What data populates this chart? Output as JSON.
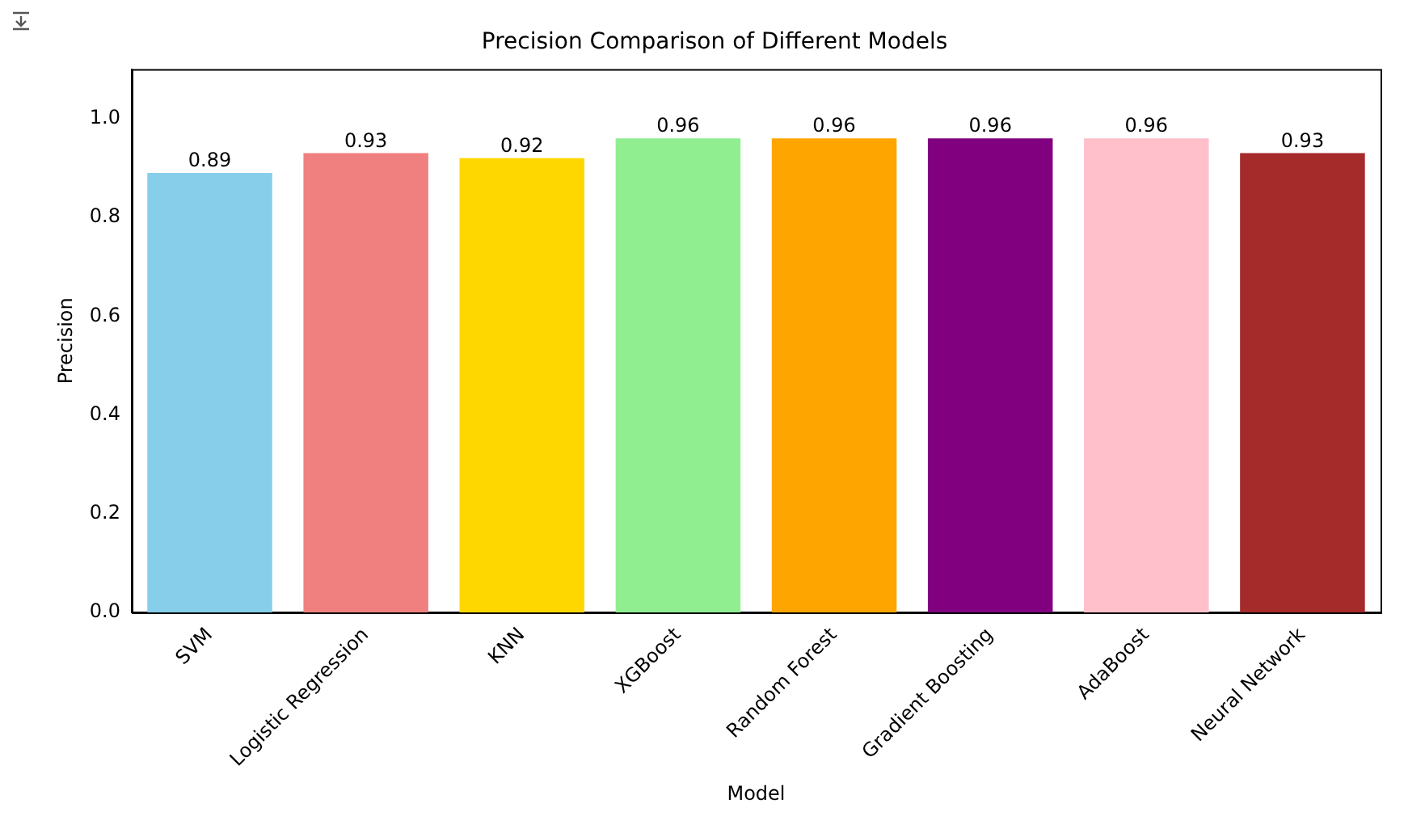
{
  "chart_data": {
    "type": "bar",
    "title": "Precision Comparison of Different Models",
    "xlabel": "Model",
    "ylabel": "Precision",
    "categories": [
      "SVM",
      "Logistic Regression",
      "KNN",
      "XGBoost",
      "Random Forest",
      "Gradient Boosting",
      "AdaBoost",
      "Neural Network"
    ],
    "values": [
      0.89,
      0.93,
      0.92,
      0.96,
      0.96,
      0.96,
      0.96,
      0.93
    ],
    "colors": [
      "#87ceeb",
      "#f08080",
      "#ffd700",
      "#90ee90",
      "#ffa500",
      "#800080",
      "#ffc0cb",
      "#a52a2a"
    ],
    "ylim": [
      0,
      1.1
    ],
    "yticks": [
      {
        "value": 0,
        "label": "0.0"
      },
      {
        "value": 0.2,
        "label": "0.2"
      },
      {
        "value": 0.4,
        "label": "0.4"
      },
      {
        "value": 0.6,
        "label": "0.6"
      },
      {
        "value": 0.8,
        "label": "0.8"
      },
      {
        "value": 1,
        "label": "1.0"
      }
    ],
    "data_labels": true,
    "grid": false,
    "legend": false
  }
}
